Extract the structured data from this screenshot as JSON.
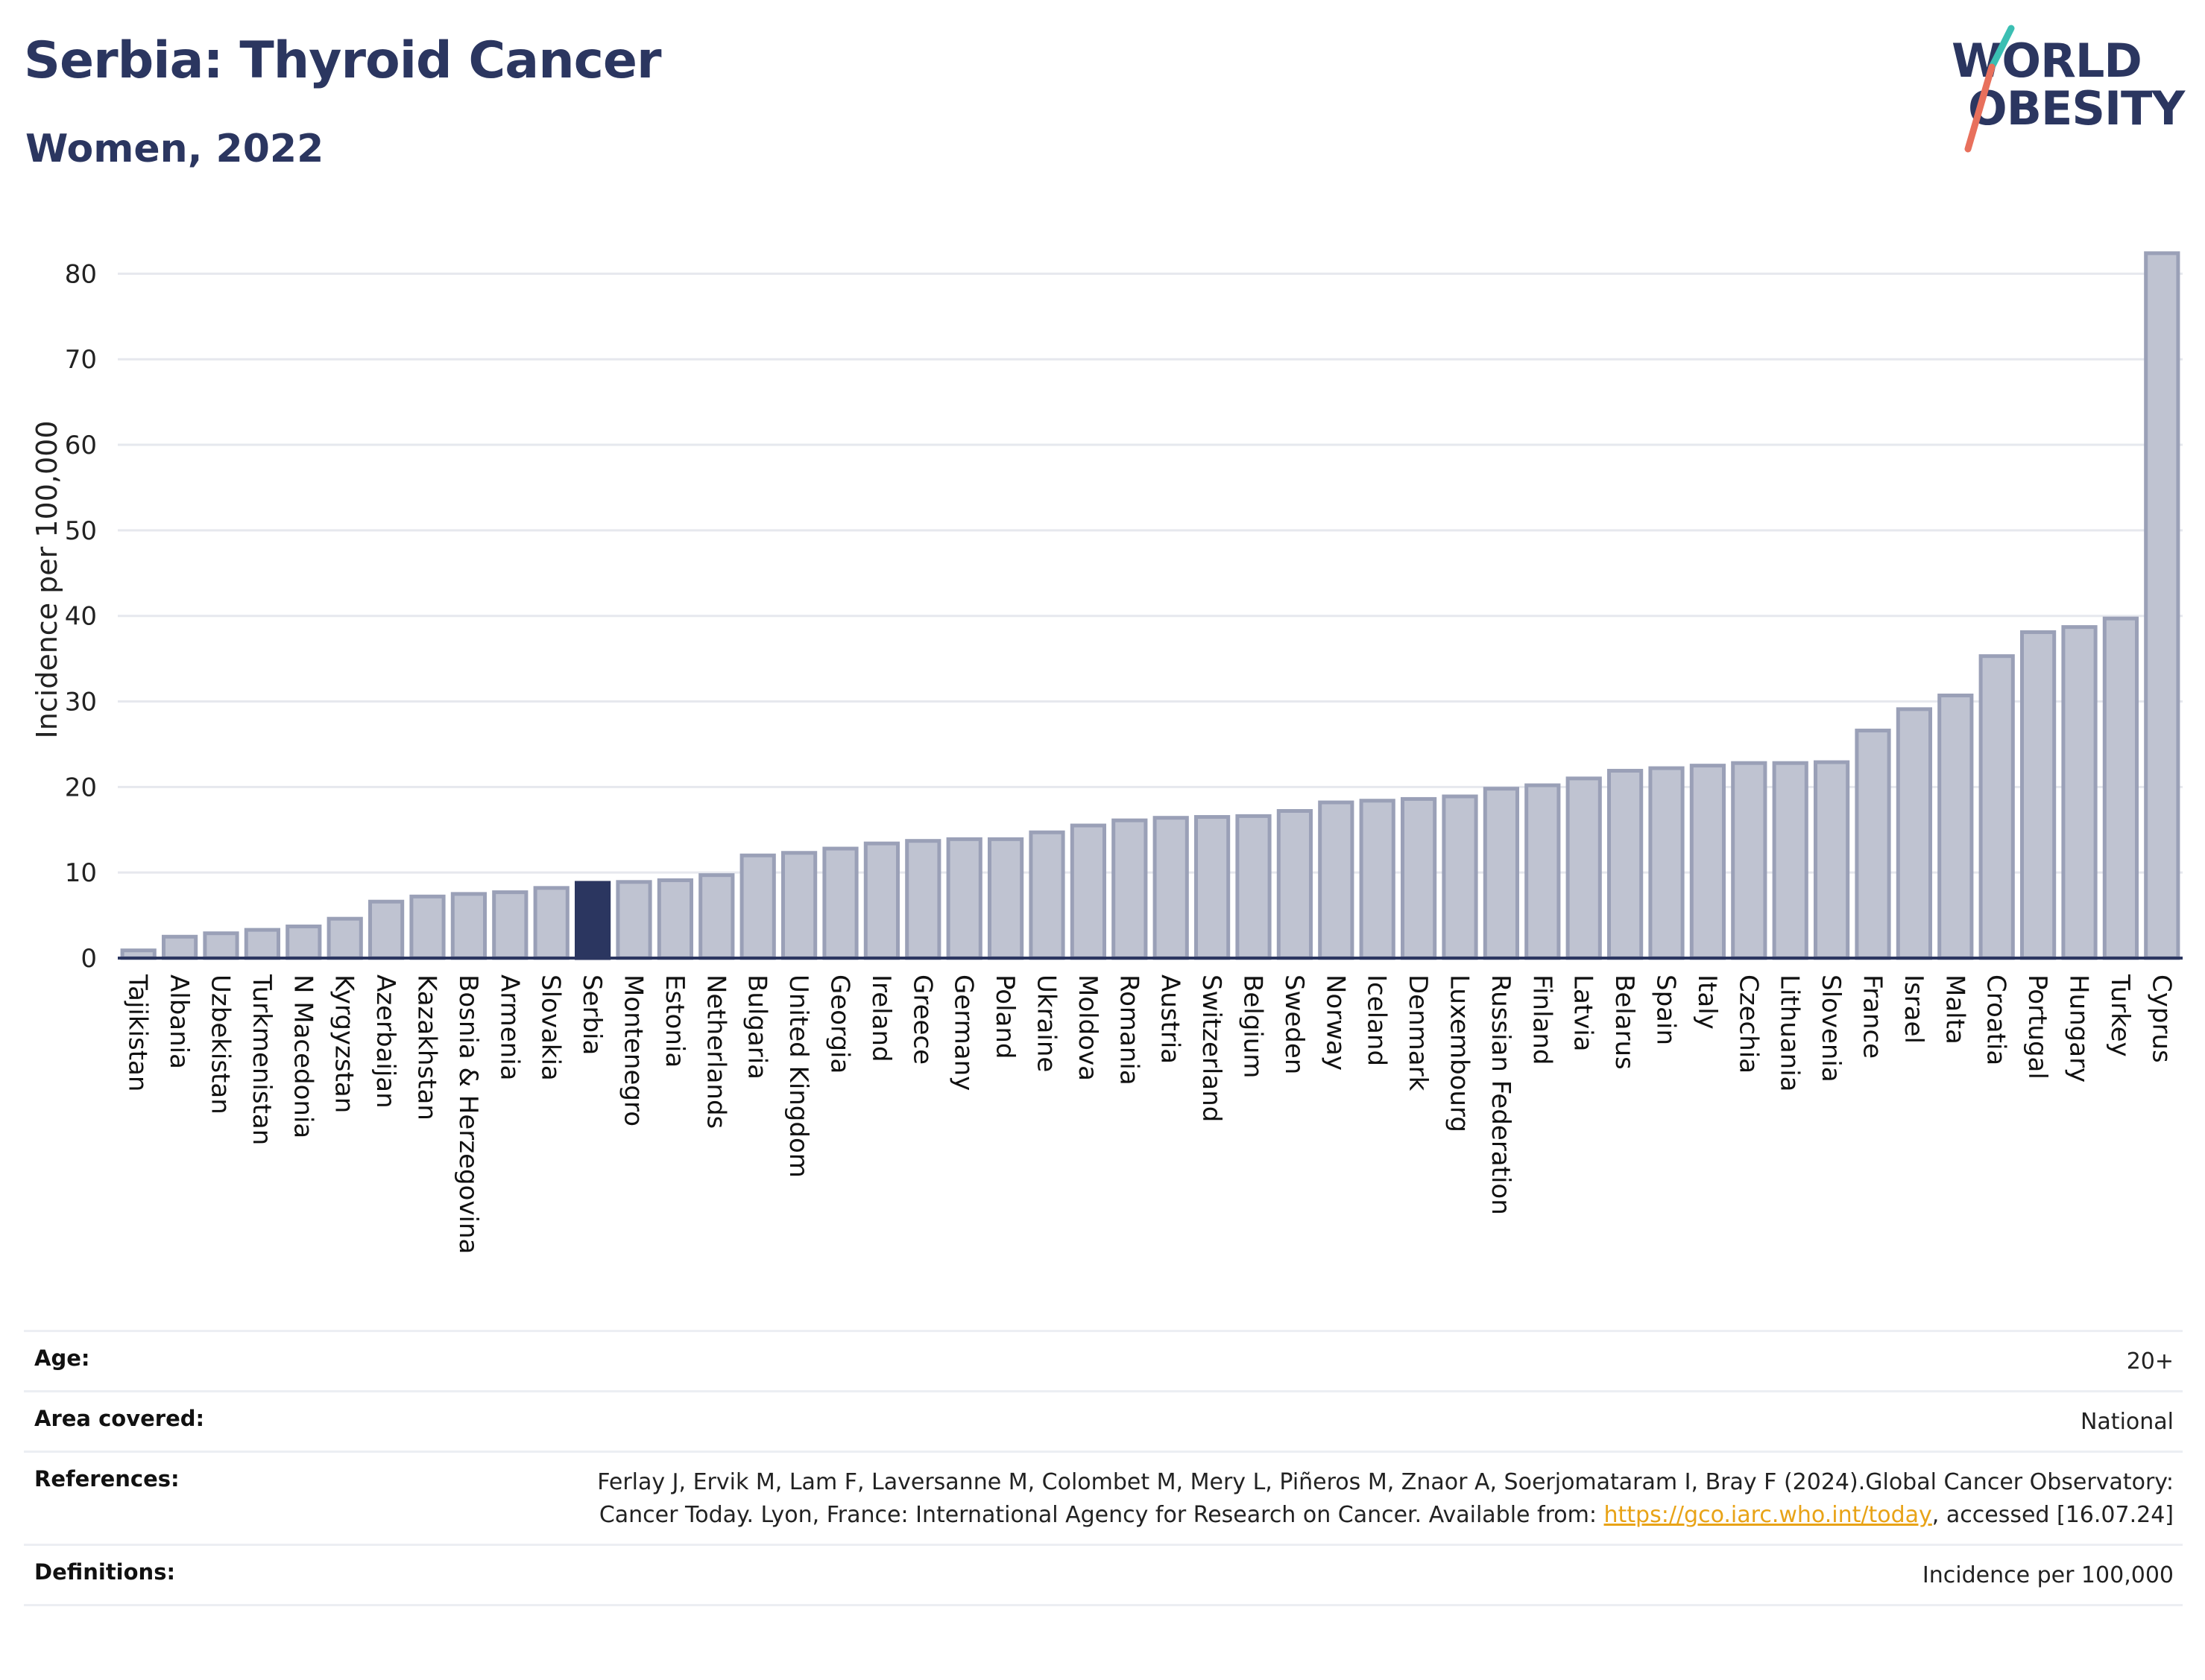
{
  "header": {
    "title": "Serbia: Thyroid Cancer",
    "subtitle": "Women, 2022"
  },
  "logo": {
    "line1": "WORLD",
    "line2": "OBESITY"
  },
  "colors": {
    "highlight": "#2b3660",
    "bar": "#bfc3d1",
    "bar_stroke": "#9aa0b7",
    "title": "#2b3660",
    "logo_slash_top": "#3bbfb3",
    "logo_slash_bottom": "#e8705c"
  },
  "chart_data": {
    "type": "bar",
    "ylabel": "Incidence per 100,000",
    "ylim": [
      0,
      85
    ],
    "yticks": [
      0,
      10,
      20,
      30,
      40,
      50,
      60,
      70,
      80
    ],
    "grid": true,
    "highlight": "Serbia",
    "categories": [
      "Tajikistan",
      "Albania",
      "Uzbekistan",
      "Turkmenistan",
      "N Macedonia",
      "Kyrgyzstan",
      "Azerbaijan",
      "Kazakhstan",
      "Bosnia & Herzegovina",
      "Armenia",
      "Slovakia",
      "Serbia",
      "Montenegro",
      "Estonia",
      "Netherlands",
      "Bulgaria",
      "United Kingdom",
      "Georgia",
      "Ireland",
      "Greece",
      "Germany",
      "Poland",
      "Ukraine",
      "Moldova",
      "Romania",
      "Austria",
      "Switzerland",
      "Belgium",
      "Sweden",
      "Norway",
      "Iceland",
      "Denmark",
      "Luxembourg",
      "Russian Federation",
      "Finland",
      "Latvia",
      "Belarus",
      "Spain",
      "Italy",
      "Czechia",
      "Lithuania",
      "Slovenia",
      "France",
      "Israel",
      "Malta",
      "Croatia",
      "Portugal",
      "Hungary",
      "Turkey",
      "Cyprus"
    ],
    "values": [
      0.9,
      2.5,
      2.9,
      3.3,
      3.7,
      4.6,
      6.6,
      7.2,
      7.5,
      7.7,
      8.2,
      8.8,
      8.9,
      9.1,
      9.7,
      12.0,
      12.3,
      12.8,
      13.4,
      13.7,
      13.9,
      13.9,
      14.7,
      15.5,
      16.1,
      16.4,
      16.5,
      16.6,
      17.2,
      18.2,
      18.4,
      18.6,
      18.9,
      19.8,
      20.2,
      21.0,
      21.9,
      22.2,
      22.5,
      22.8,
      22.8,
      22.9,
      26.6,
      29.1,
      30.7,
      35.3,
      38.1,
      38.7,
      39.7,
      82.4
    ]
  },
  "footer": {
    "age_label": "Age:",
    "age_value": "20+",
    "area_label": "Area covered:",
    "area_value": "National",
    "ref_label": "References:",
    "ref_text_1": "Ferlay J, Ervik M, Lam F, Laversanne M, Colombet M, Mery L, Piñeros M, Znaor A, Soerjomataram I, Bray F (2024).Global Cancer Observatory: Cancer Today. Lyon, France: International Agency for Research on Cancer. Available from: ",
    "ref_link": "https://gco.iarc.who.int/today",
    "ref_text_2": ", accessed [16.07.24]",
    "def_label": "Definitions:",
    "def_value": "Incidence per 100,000"
  }
}
